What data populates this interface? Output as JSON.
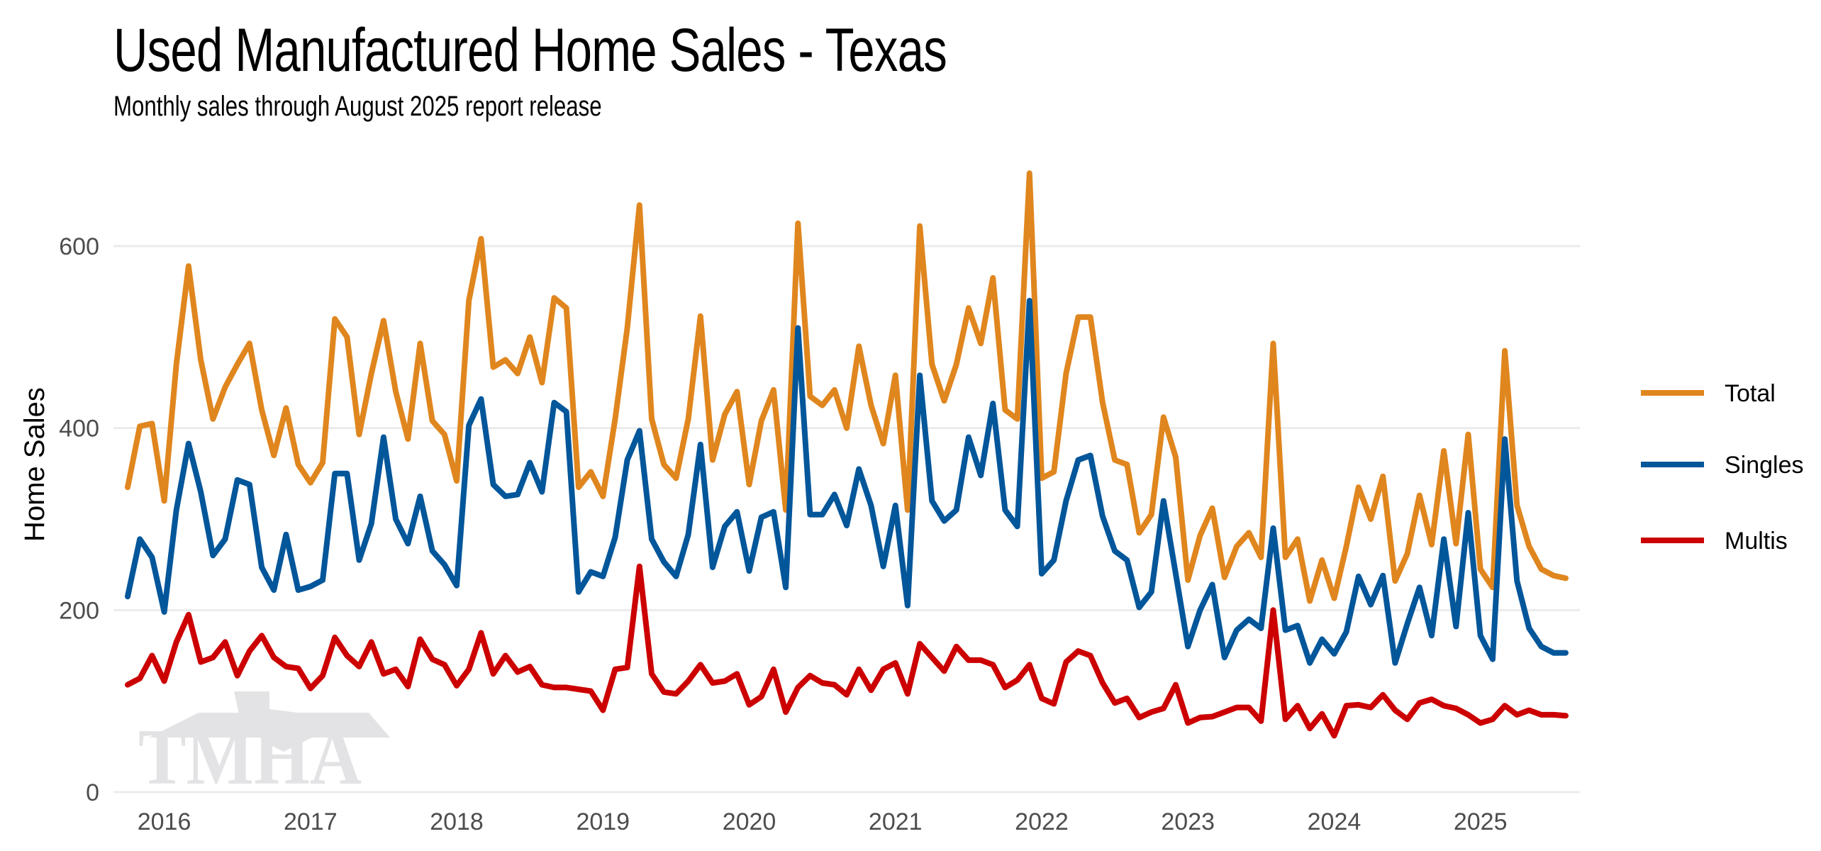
{
  "title": "Used Manufactured Home Sales - Texas",
  "subtitle": "Monthly sales through August 2025 report release",
  "watermark_logo_text": "TMHA",
  "chart_data": {
    "type": "line",
    "title": "Used Manufactured Home Sales - Texas",
    "subtitle": "Monthly sales through August 2025 report release",
    "xlabel": "",
    "ylabel": "Home Sales",
    "x_start": "2015-10",
    "x_end": "2025-08",
    "x_frequency": "monthly",
    "x_tick_labels": [
      "2016",
      "2017",
      "2018",
      "2019",
      "2020",
      "2021",
      "2022",
      "2023",
      "2024",
      "2025"
    ],
    "y_ticks": [
      0,
      200,
      400,
      600
    ],
    "ylim": [
      0,
      690
    ],
    "grid": "horizontal",
    "legend_position": "right",
    "series": [
      {
        "name": "Total",
        "color": "#E0861E",
        "values": [
          335,
          402,
          405,
          320,
          470,
          578,
          475,
          410,
          445,
          470,
          493,
          420,
          370,
          422,
          360,
          340,
          362,
          520,
          500,
          393,
          460,
          518,
          440,
          388,
          493,
          408,
          393,
          342,
          540,
          608,
          467,
          475,
          460,
          500,
          450,
          543,
          532,
          335,
          352,
          325,
          410,
          510,
          645,
          410,
          360,
          345,
          410,
          523,
          365,
          415,
          440,
          338,
          408,
          442,
          310,
          625,
          435,
          425,
          442,
          400,
          490,
          425,
          383,
          458,
          310,
          622,
          470,
          430,
          470,
          532,
          493,
          565,
          420,
          410,
          680,
          345,
          352,
          460,
          522,
          522,
          428,
          365,
          360,
          285,
          305,
          412,
          368,
          233,
          282,
          312,
          236,
          270,
          285,
          258,
          493,
          258,
          278,
          210,
          255,
          213,
          270,
          335,
          300,
          347,
          232,
          262,
          326,
          272,
          375,
          273,
          393,
          245,
          225,
          485,
          315,
          270,
          245,
          238,
          235
        ]
      },
      {
        "name": "Singles",
        "color": "#02569A",
        "values": [
          215,
          278,
          258,
          198,
          310,
          383,
          330,
          260,
          278,
          343,
          338,
          247,
          222,
          283,
          222,
          226,
          233,
          350,
          350,
          255,
          295,
          390,
          300,
          273,
          325,
          265,
          250,
          227,
          403,
          432,
          338,
          325,
          327,
          362,
          330,
          428,
          418,
          220,
          242,
          237,
          280,
          365,
          397,
          278,
          253,
          237,
          283,
          382,
          247,
          292,
          308,
          243,
          302,
          308,
          225,
          510,
          305,
          305,
          327,
          293,
          355,
          315,
          248,
          315,
          205,
          458,
          320,
          298,
          310,
          390,
          348,
          427,
          310,
          292,
          540,
          240,
          255,
          320,
          365,
          370,
          303,
          265,
          255,
          203,
          220,
          320,
          240,
          160,
          200,
          228,
          148,
          178,
          190,
          180,
          290,
          178,
          183,
          142,
          168,
          152,
          176,
          237,
          206,
          238,
          142,
          185,
          225,
          172,
          278,
          182,
          307,
          172,
          146,
          388,
          232,
          180,
          160,
          153,
          153
        ]
      },
      {
        "name": "Multis",
        "color": "#CC0000",
        "values": [
          118,
          125,
          150,
          122,
          165,
          195,
          143,
          148,
          165,
          128,
          155,
          172,
          148,
          138,
          136,
          114,
          128,
          170,
          150,
          138,
          165,
          130,
          135,
          116,
          168,
          146,
          140,
          117,
          135,
          175,
          130,
          150,
          132,
          138,
          118,
          115,
          115,
          113,
          111,
          90,
          135,
          137,
          248,
          130,
          110,
          108,
          122,
          140,
          120,
          122,
          130,
          96,
          105,
          135,
          88,
          115,
          128,
          120,
          118,
          107,
          135,
          112,
          135,
          142,
          108,
          163,
          148,
          133,
          160,
          145,
          145,
          140,
          115,
          123,
          140,
          103,
          97,
          143,
          155,
          150,
          120,
          98,
          103,
          82,
          88,
          92,
          118,
          76,
          82,
          83,
          88,
          93,
          93,
          78,
          200,
          80,
          95,
          70,
          86,
          62,
          95,
          96,
          93,
          107,
          90,
          80,
          98,
          102,
          95,
          92,
          85,
          76,
          80,
          95,
          85,
          90,
          85,
          85,
          84
        ]
      }
    ]
  }
}
